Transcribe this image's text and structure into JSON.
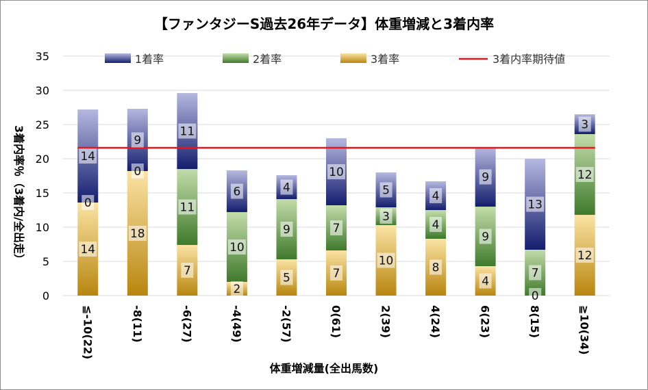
{
  "chart_data": {
    "type": "bar",
    "stacked": true,
    "title": "【ファンタジーS過去26年データ】体重増減と3着内率",
    "xlabel": "体重増減量(全出馬数)",
    "ylabel": "3着内率％（3着内/全出走）",
    "ylim": [
      0,
      35
    ],
    "yticks": [
      0,
      5,
      10,
      15,
      20,
      25,
      30,
      35
    ],
    "categories": [
      "≦-10(22)",
      "-8(11)",
      "-6(27)",
      "-4(49)",
      "-2(57)",
      "0(61)",
      "2(39)",
      "4(24)",
      "6(23)",
      "8(15)",
      "≧10(34)"
    ],
    "series": [
      {
        "name": "3着率",
        "values": [
          13.6,
          18.2,
          7.4,
          2.0,
          5.3,
          6.6,
          10.3,
          8.3,
          4.3,
          0.0,
          11.8
        ],
        "labels": [
          "14",
          "18",
          "7",
          "2",
          "5",
          "7",
          "10",
          "8",
          "4",
          "0",
          "12"
        ],
        "color": "#d4a835"
      },
      {
        "name": "2着率",
        "values": [
          0.0,
          0.0,
          11.1,
          10.2,
          8.8,
          6.6,
          2.6,
          4.2,
          8.7,
          6.7,
          11.8
        ],
        "labels": [
          "0",
          "0",
          "11",
          "10",
          "9",
          "7",
          "3",
          "4",
          "9",
          "7",
          "12"
        ],
        "color": "#6a9a45"
      },
      {
        "name": "1着率",
        "values": [
          13.6,
          9.1,
          11.1,
          6.1,
          3.5,
          9.8,
          5.1,
          4.2,
          8.7,
          13.3,
          2.9
        ],
        "labels": [
          "14",
          "9",
          "11",
          "6",
          "4",
          "10",
          "5",
          "4",
          "9",
          "13",
          "3"
        ],
        "color": "#2c3a8c"
      }
    ],
    "reference_line": {
      "name": "3着内率期待値",
      "value": 21.6,
      "color": "#e8161b"
    },
    "legend": [
      "1着率",
      "2着率",
      "3着率",
      "3着内率期待値"
    ],
    "legend_position": "top",
    "grid": true
  }
}
